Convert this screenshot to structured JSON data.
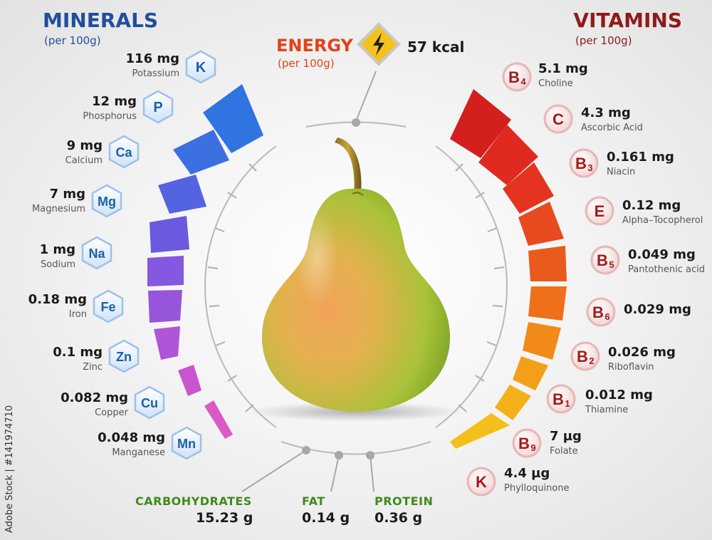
{
  "minerals": {
    "title": "MINERALS",
    "per": "(per 100g)",
    "items": [
      {
        "value": "116 mg",
        "name": "Potassium",
        "symbol": "K"
      },
      {
        "value": "12 mg",
        "name": "Phosphorus",
        "symbol": "P"
      },
      {
        "value": "9 mg",
        "name": "Calcium",
        "symbol": "Ca"
      },
      {
        "value": "7 mg",
        "name": "Magnesium",
        "symbol": "Mg"
      },
      {
        "value": "1 mg",
        "name": "Sodium",
        "symbol": "Na"
      },
      {
        "value": "0.18 mg",
        "name": "Iron",
        "symbol": "Fe"
      },
      {
        "value": "0.1 mg",
        "name": "Zinc",
        "symbol": "Zn"
      },
      {
        "value": "0.082 mg",
        "name": "Copper",
        "symbol": "Cu"
      },
      {
        "value": "0.048 mg",
        "name": "Manganese",
        "symbol": "Mn"
      }
    ]
  },
  "vitamins": {
    "title": "VITAMINS",
    "per": "(per 100g)",
    "items": [
      {
        "value": "5.1 mg",
        "name": "Choline",
        "symbol": "B",
        "sub": "4"
      },
      {
        "value": "4.3 mg",
        "name": "Ascorbic Acid",
        "symbol": "C",
        "sub": ""
      },
      {
        "value": "0.161 mg",
        "name": "Niacin",
        "symbol": "B",
        "sub": "3"
      },
      {
        "value": "0.12 mg",
        "name": "Alpha–Tocopherol",
        "symbol": "E",
        "sub": ""
      },
      {
        "value": "0.049 mg",
        "name": "Pantothenic acid",
        "symbol": "B",
        "sub": "5"
      },
      {
        "value": "0.029 mg",
        "name": "",
        "symbol": "B",
        "sub": "6"
      },
      {
        "value": "0.026 mg",
        "name": "Riboflavin",
        "symbol": "B",
        "sub": "2"
      },
      {
        "value": "0.012 mg",
        "name": "Thiamine",
        "symbol": "B",
        "sub": "1"
      },
      {
        "value": "7 µg",
        "name": "Folate",
        "symbol": "B",
        "sub": "9"
      },
      {
        "value": "4.4 µg",
        "name": "Phylloquinone",
        "symbol": "K",
        "sub": ""
      }
    ]
  },
  "energy": {
    "title": "ENERGY",
    "per": "(per 100g)",
    "value": "57 kcal",
    "icon": "lightning-bolt-icon"
  },
  "macros": [
    {
      "label": "CARBOHYDRATES",
      "value": "15.23 g"
    },
    {
      "label": "FAT",
      "value": "0.14 g"
    },
    {
      "label": "PROTEIN",
      "value": "0.36 g"
    }
  ],
  "watermark": "Adobe Stock | #141974710",
  "colors": {
    "minerals_title": "#1f4e9e",
    "vitamins_title": "#8e1b1b",
    "energy_title": "#e2421a",
    "macro_label": "#3f8a1e",
    "mineral_symbol": "#1b5fa8",
    "vitamin_symbol": "#a11a1a"
  },
  "subject": "pear"
}
